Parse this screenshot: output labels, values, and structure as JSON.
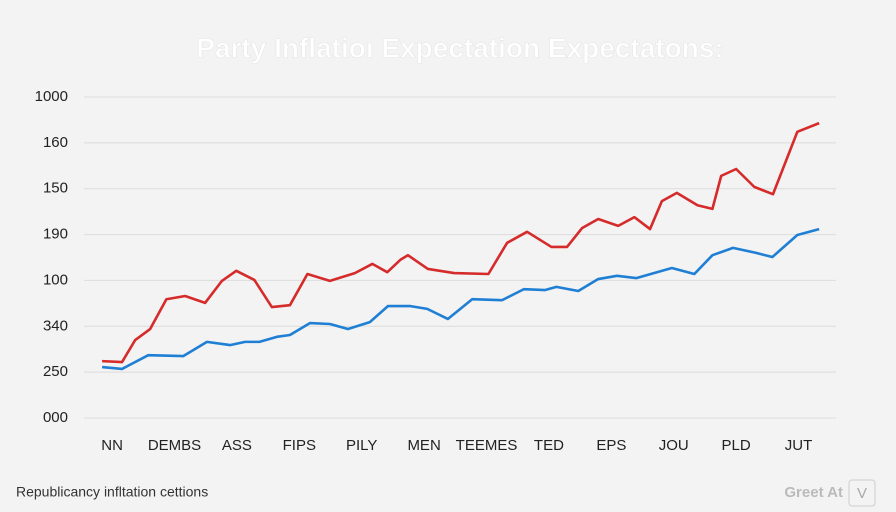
{
  "chart_data": {
    "type": "line",
    "title": "Party Inflatioı Expectation Expectatons:",
    "footer": "Republicancy infltation cettions",
    "brand": {
      "text": "Greet At",
      "badge": "V"
    },
    "xlim": [
      -0.45,
      11.6
    ],
    "xticks": [
      {
        "value": 0,
        "label": "NN"
      },
      {
        "value": 1,
        "label": "DEMBS"
      },
      {
        "value": 2,
        "label": "ASS"
      },
      {
        "value": 3,
        "label": "FIPS"
      },
      {
        "value": 4,
        "label": "PILY"
      },
      {
        "value": 5,
        "label": "MEN"
      },
      {
        "value": 6,
        "label": "TEEMES"
      },
      {
        "value": 7,
        "label": "TED"
      },
      {
        "value": 8,
        "label": "EPS"
      },
      {
        "value": 9,
        "label": "JOU"
      },
      {
        "value": 10,
        "label": "PLD"
      },
      {
        "value": 11,
        "label": "JUT"
      }
    ],
    "ylim": [
      0,
      7
    ],
    "yticks": [
      {
        "value": 0,
        "label": "000"
      },
      {
        "value": 1,
        "label": "250"
      },
      {
        "value": 2,
        "label": "340"
      },
      {
        "value": 3,
        "label": "100"
      },
      {
        "value": 4,
        "label": "190"
      },
      {
        "value": 5,
        "label": "150"
      },
      {
        "value": 6,
        "label": "160"
      },
      {
        "value": 7,
        "label": "1000"
      }
    ],
    "grid": true,
    "series": [
      {
        "color": "#d62b2b",
        "x": [
          -0.16,
          0.16,
          0.37,
          0.61,
          0.87,
          1.17,
          1.49,
          1.76,
          1.99,
          2.28,
          2.56,
          2.85,
          3.13,
          3.49,
          3.89,
          4.17,
          4.41,
          4.62,
          4.74,
          5.06,
          5.48,
          6.03,
          6.33,
          6.65,
          7.04,
          7.29,
          7.53,
          7.79,
          8.11,
          8.37,
          8.62,
          8.81,
          9.05,
          9.38,
          9.62,
          9.76,
          10.0,
          10.29,
          10.59,
          10.98,
          11.33
        ],
        "values": [
          1.24,
          1.22,
          1.7,
          1.94,
          2.59,
          2.66,
          2.51,
          2.99,
          3.21,
          3.01,
          2.42,
          2.46,
          3.14,
          2.99,
          3.16,
          3.36,
          3.18,
          3.45,
          3.55,
          3.25,
          3.16,
          3.14,
          3.82,
          4.06,
          3.73,
          3.73,
          4.14,
          4.34,
          4.19,
          4.38,
          4.12,
          4.73,
          4.91,
          4.64,
          4.56,
          5.28,
          5.43,
          5.04,
          4.88,
          6.24,
          6.43
        ]
      },
      {
        "color": "#1f7fd4",
        "x": [
          -0.16,
          0.16,
          0.58,
          1.14,
          1.52,
          1.89,
          2.13,
          2.36,
          2.64,
          2.85,
          3.17,
          3.49,
          3.78,
          4.13,
          4.42,
          4.78,
          5.05,
          5.38,
          5.77,
          6.25,
          6.6,
          6.94,
          7.12,
          7.47,
          7.79,
          8.09,
          8.4,
          8.97,
          9.33,
          9.62,
          9.95,
          10.32,
          10.58,
          10.98,
          11.33
        ],
        "values": [
          1.11,
          1.07,
          1.37,
          1.35,
          1.66,
          1.59,
          1.66,
          1.66,
          1.77,
          1.81,
          2.07,
          2.05,
          1.94,
          2.09,
          2.44,
          2.44,
          2.38,
          2.16,
          2.59,
          2.57,
          2.81,
          2.79,
          2.86,
          2.77,
          3.03,
          3.1,
          3.05,
          3.27,
          3.14,
          3.55,
          3.71,
          3.6,
          3.51,
          3.99,
          4.12
        ]
      }
    ]
  }
}
